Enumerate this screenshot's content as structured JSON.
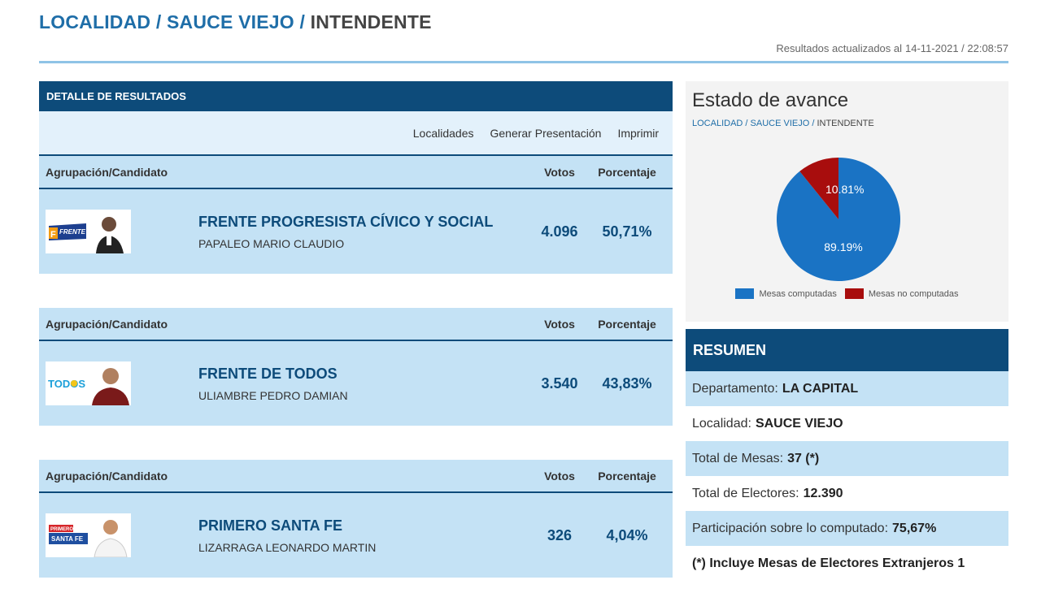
{
  "breadcrumb": {
    "part1": "LOCALIDAD",
    "part2": "SAUCE VIEJO",
    "current": "INTENDENTE"
  },
  "updated": {
    "label": "Resultados actualizados al",
    "datetime": "14-11-2021 / 22:08:57"
  },
  "detail": {
    "header": "DETALLE DE RESULTADOS",
    "toolbar": {
      "localidades": "Localidades",
      "generar": "Generar Presentación",
      "imprimir": "Imprimir"
    },
    "columns": {
      "agrupacion": "Agrupación/Candidato",
      "votos": "Votos",
      "porcentaje": "Porcentaje"
    },
    "results": [
      {
        "party": "FRENTE PROGRESISTA CÍVICO Y SOCIAL",
        "candidate": "PAPALEO MARIO CLAUDIO",
        "votes": "4.096",
        "percent": "50,71%",
        "logo_text": "FRENTE",
        "logo_letter": "F"
      },
      {
        "party": "FRENTE DE TODOS",
        "candidate": "ULIAMBRE PEDRO DAMIAN",
        "votes": "3.540",
        "percent": "43,83%",
        "logo_text": "TODOS"
      },
      {
        "party": "PRIMERO SANTA FE",
        "candidate": "LIZARRAGA LEONARDO MARTIN",
        "votes": "326",
        "percent": "4,04%",
        "logo_text": "PRIMERO",
        "logo_text2": "SANTA FE"
      }
    ]
  },
  "status": {
    "title": "Estado de avance",
    "crumb": {
      "part1": "LOCALIDAD",
      "part2": "SAUCE VIEJO",
      "current": "INTENDENTE"
    },
    "pie": {
      "computadas_label": "89.19%",
      "no_computadas_label": "10.81%",
      "computadas_value": 89.19,
      "no_computadas_value": 10.81,
      "color_computadas": "#1a73c4",
      "color_no_computadas": "#a80d0d"
    },
    "legend": {
      "computadas": "Mesas computadas",
      "no_computadas": "Mesas no computadas"
    }
  },
  "resumen": {
    "header": "RESUMEN",
    "departamento_label": "Departamento:",
    "departamento": "LA CAPITAL",
    "localidad_label": "Localidad:",
    "localidad": "SAUCE VIEJO",
    "mesas_label": "Total de Mesas:",
    "mesas": "37 (*)",
    "electores_label": "Total de Electores:",
    "electores": "12.390",
    "participacion_label": "Participación sobre lo computado:",
    "participacion": "75,67%",
    "note": "(*) Incluye Mesas de Electores Extranjeros 1"
  }
}
